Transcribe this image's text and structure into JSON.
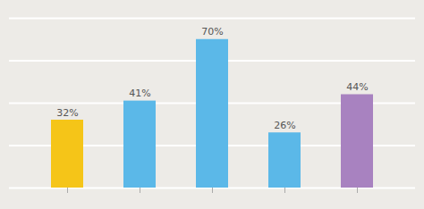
{
  "chart_data": {
    "type": "bar",
    "categories": [
      null,
      null,
      null,
      null,
      null
    ],
    "values": [
      32,
      41,
      70,
      26,
      44
    ],
    "value_labels": [
      "32%",
      "41%",
      "70%",
      "26%",
      "44%"
    ],
    "colors": [
      "#F5C518",
      "#5BB8E8",
      "#5BB8E8",
      "#5BB8E8",
      "#A882C0"
    ],
    "ylim": [
      0,
      80
    ],
    "yticks": [
      0,
      20,
      40,
      60,
      80
    ],
    "grid": true,
    "data_labels": true,
    "tick_labels": false
  }
}
